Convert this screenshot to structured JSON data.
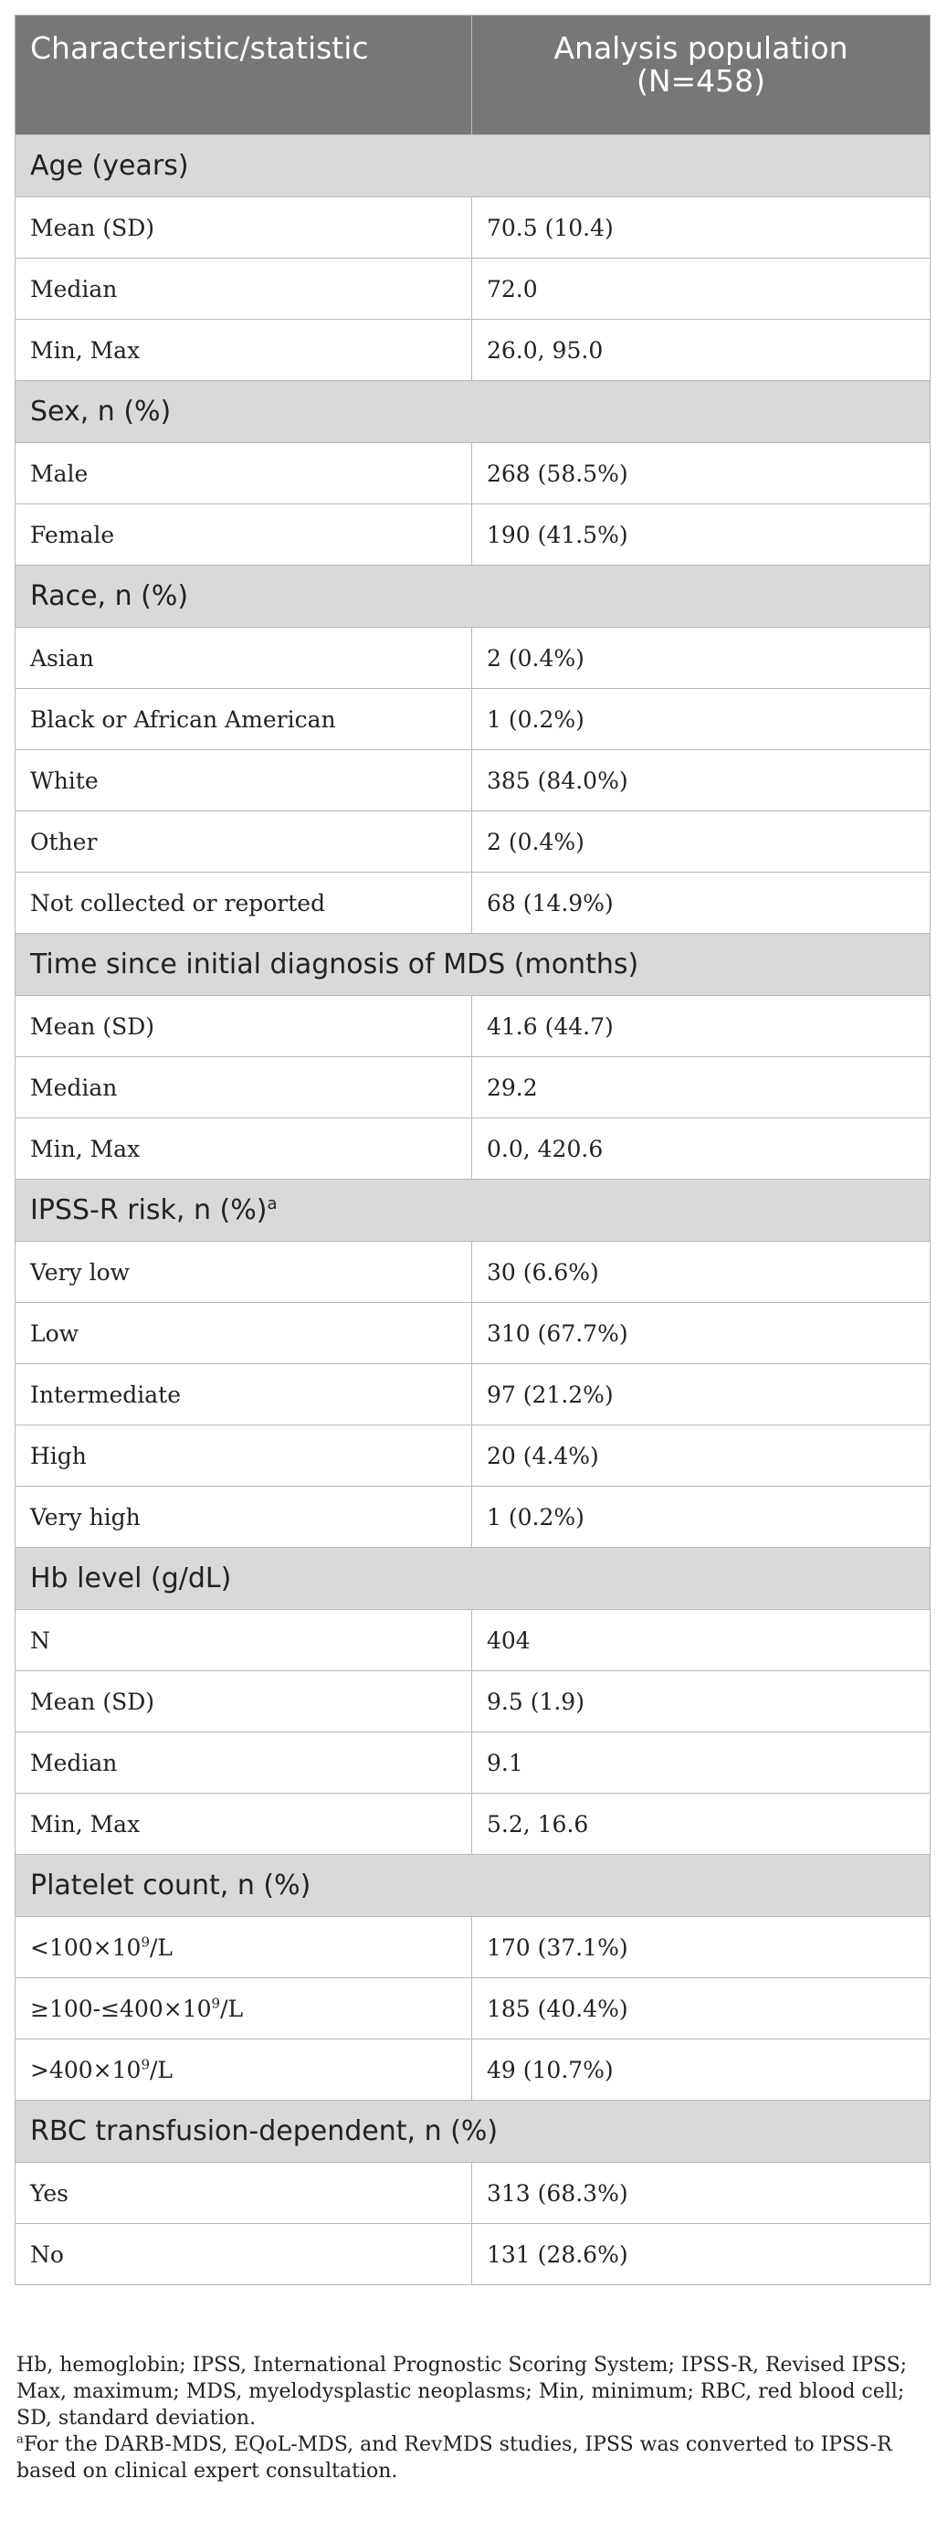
{
  "header": {
    "col1": "Characteristic/statistic",
    "col2_line1": "Analysis population",
    "col2_line2": "(N=458)"
  },
  "sections": [
    {
      "title": "Age (years)",
      "rows": [
        {
          "label": "Mean (SD)",
          "value": "70.5 (10.4)"
        },
        {
          "label": "Median",
          "value": "72.0"
        },
        {
          "label": "Min, Max",
          "value": "26.0, 95.0"
        }
      ]
    },
    {
      "title": "Sex, n (%)",
      "rows": [
        {
          "label": "Male",
          "value": "268 (58.5%)"
        },
        {
          "label": "Female",
          "value": "190 (41.5%)"
        }
      ]
    },
    {
      "title": "Race, n (%)",
      "rows": [
        {
          "label": "Asian",
          "value": "2 (0.4%)"
        },
        {
          "label": "Black or African American",
          "value": "1 (0.2%)"
        },
        {
          "label": "White",
          "value": "385 (84.0%)"
        },
        {
          "label": "Other",
          "value": "2 (0.4%)"
        },
        {
          "label": "Not collected or reported",
          "value": "68 (14.9%)"
        }
      ]
    },
    {
      "title": "Time since initial diagnosis of MDS (months)",
      "rows": [
        {
          "label": "Mean (SD)",
          "value": "41.6 (44.7)"
        },
        {
          "label": "Median",
          "value": "29.2"
        },
        {
          "label": "Min, Max",
          "value": "0.0, 420.6"
        }
      ]
    },
    {
      "title": "IPSS-R risk, n (%)",
      "title_sup": "a",
      "rows": [
        {
          "label": "Very low",
          "value": "30 (6.6%)"
        },
        {
          "label": "Low",
          "value": "310 (67.7%)"
        },
        {
          "label": "Intermediate",
          "value": "97 (21.2%)"
        },
        {
          "label": "High",
          "value": "20 (4.4%)"
        },
        {
          "label": "Very high",
          "value": "1 (0.2%)"
        }
      ]
    },
    {
      "title": "Hb level (g/dL)",
      "rows": [
        {
          "label": "N",
          "value": "404"
        },
        {
          "label": "Mean (SD)",
          "value": "9.5 (1.9)"
        },
        {
          "label": "Median",
          "value": "9.1"
        },
        {
          "label": "Min, Max",
          "value": "5.2, 16.6"
        }
      ]
    },
    {
      "title": "Platelet count, n (%)",
      "rows": [
        {
          "label": "<100×10",
          "label_sup": "9",
          "label_after": "/L",
          "value": "170 (37.1%)"
        },
        {
          "label": "≥100-≤400×10",
          "label_sup": "9",
          "label_after": "/L",
          "value": "185 (40.4%)"
        },
        {
          "label": ">400×10",
          "label_sup": "9",
          "label_after": "/L",
          "value": "49 (10.7%)"
        }
      ]
    },
    {
      "title": "RBC transfusion-dependent, n (%)",
      "rows": [
        {
          "label": "Yes",
          "value": "313 (68.3%)"
        },
        {
          "label": "No",
          "value": "131 (28.6%)"
        }
      ]
    }
  ],
  "footnotes": {
    "abbreviations": "Hb, hemoglobin; IPSS, International Prognostic Scoring System; IPSS-R, Revised IPSS; Max, maximum; MDS, myelodysplastic neoplasms; Min, minimum; RBC, red blood cell; SD, standard deviation.",
    "note_marker": "a",
    "note_text": "For the DARB-MDS, EQoL-MDS, and RevMDS studies, IPSS was converted to IPSS-R based on clinical expert consultation."
  }
}
